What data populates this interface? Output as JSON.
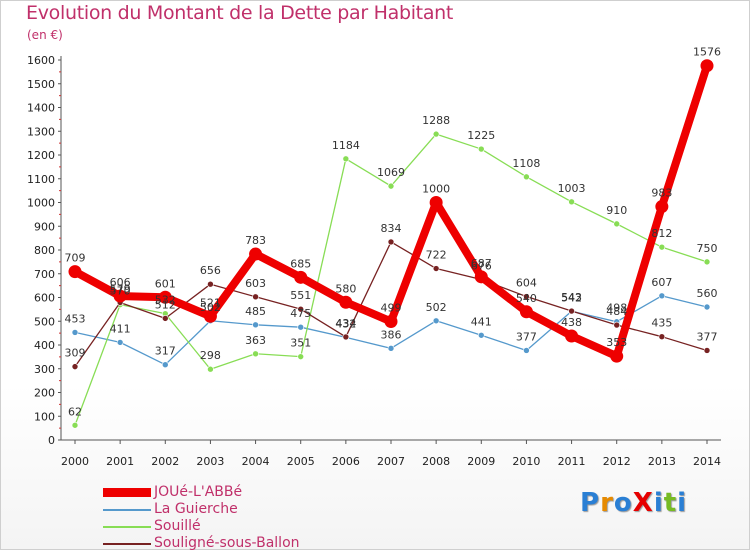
{
  "header": {
    "title": "Evolution du Montant de la Dette par Habitant",
    "unit": "(en €)"
  },
  "colors": {
    "title": "#c0306a",
    "joue": "#ee0000",
    "guierche": "#5599cc",
    "souille": "#88dd55",
    "souligne": "#772222"
  },
  "logo": {
    "text": "ProXiti",
    "letter_colors": [
      "#2a7fd4",
      "#e68a00",
      "#2a7fd4",
      "#e60000",
      "#2a7fd4",
      "#77bb22",
      "#2a7fd4"
    ]
  },
  "chart_data": {
    "type": "line",
    "title": "Evolution du Montant de la Dette par Habitant",
    "ylabel": "(en €)",
    "xlabel": "",
    "ylim": [
      0,
      1600
    ],
    "ytick_step": 100,
    "grid": false,
    "legend_position": "bottom-left",
    "categories": [
      "2000",
      "2001",
      "2002",
      "2003",
      "2004",
      "2005",
      "2006",
      "2007",
      "2008",
      "2009",
      "2010",
      "2011",
      "2012",
      "2013",
      "2014"
    ],
    "series": [
      {
        "name": "JOUé-L'ABBé",
        "color": "#ee0000",
        "thick": true,
        "values": [
          709,
          606,
          601,
          521,
          783,
          685,
          580,
          499,
          1000,
          687,
          540,
          438,
          353,
          983,
          1576
        ]
      },
      {
        "name": "La Guierche",
        "color": "#5599cc",
        "thick": false,
        "values": [
          453,
          411,
          317,
          502,
          485,
          475,
          432,
          386,
          502,
          441,
          377,
          542,
          498,
          607,
          560
        ]
      },
      {
        "name": "Souillé",
        "color": "#88dd55",
        "thick": false,
        "values": [
          62,
          570,
          532,
          298,
          363,
          351,
          1184,
          1069,
          1288,
          1225,
          1108,
          1003,
          910,
          812,
          750
        ]
      },
      {
        "name": "Souligné-sous-Ballon",
        "color": "#772222",
        "thick": false,
        "values": [
          309,
          579,
          512,
          656,
          603,
          551,
          434,
          834,
          722,
          676,
          604,
          543,
          484,
          435,
          377
        ]
      }
    ]
  }
}
